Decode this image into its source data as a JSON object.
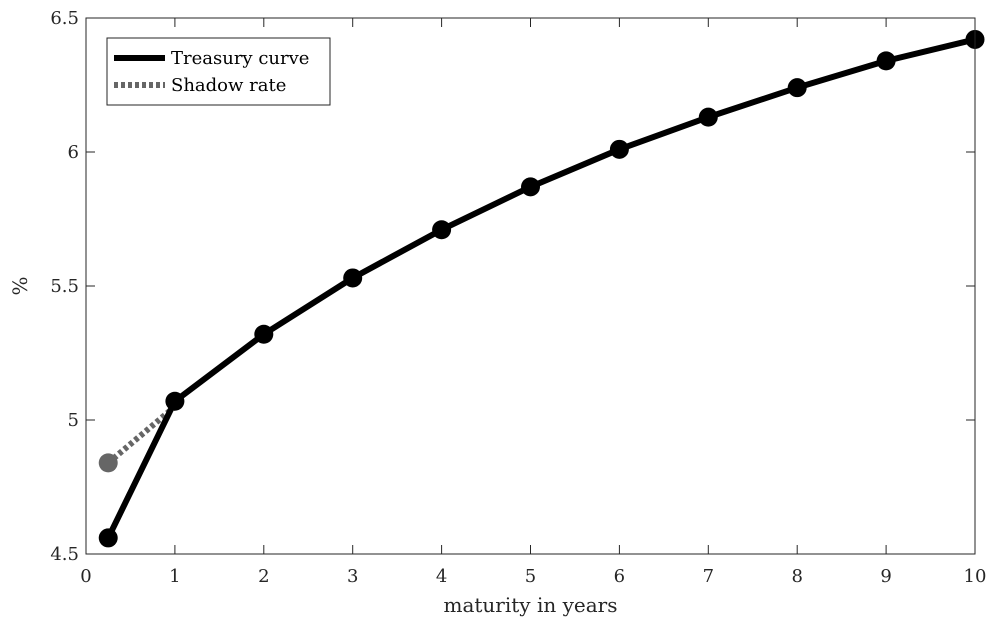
{
  "chart_data": {
    "type": "line",
    "title": "",
    "xlabel": "maturity in years",
    "ylabel": "%",
    "xlim": [
      0,
      10
    ],
    "ylim": [
      4.5,
      6.5
    ],
    "xticks": [
      0,
      1,
      2,
      3,
      4,
      5,
      6,
      7,
      8,
      9,
      10
    ],
    "xtick_labels": [
      "0",
      "1",
      "2",
      "3",
      "4",
      "5",
      "6",
      "7",
      "8",
      "9",
      "10"
    ],
    "yticks": [
      4.5,
      5,
      5.5,
      6,
      6.5
    ],
    "ytick_labels": [
      "4.5",
      "5",
      "5.5",
      "6",
      "6.5"
    ],
    "grid": false,
    "legend_position": "top-left",
    "series": [
      {
        "name": "Treasury curve",
        "style": "solid",
        "color": "#000000",
        "x": [
          0.25,
          1,
          2,
          3,
          4,
          5,
          6,
          7,
          8,
          9,
          10
        ],
        "y": [
          4.56,
          5.07,
          5.32,
          5.53,
          5.71,
          5.87,
          6.01,
          6.13,
          6.24,
          6.34,
          6.42
        ]
      },
      {
        "name": "Shadow rate",
        "style": "dotted",
        "color": "#666666",
        "x": [
          0.25,
          1
        ],
        "y": [
          4.84,
          5.05
        ]
      }
    ]
  }
}
